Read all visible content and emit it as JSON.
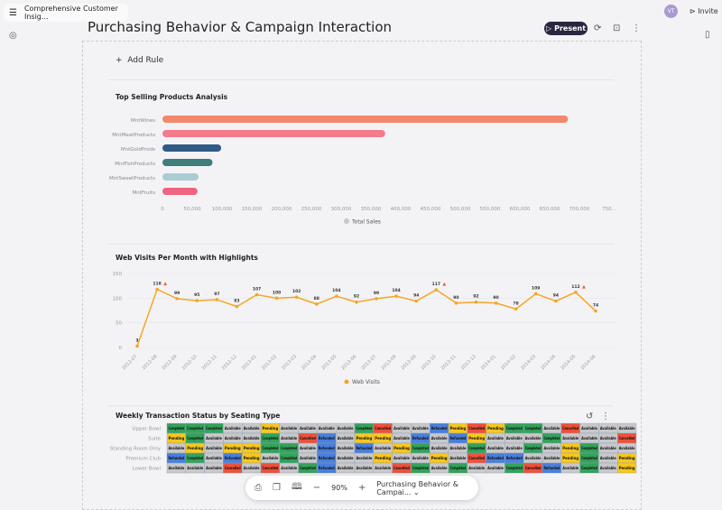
{
  "header": {
    "doc_title": "Comprehensive Customer Insig...",
    "page_title": "Purchasing Behavior & Campaign Interaction",
    "present_label": "Present",
    "avatar_initials": "VT",
    "invite_label": "Invite"
  },
  "canvas": {
    "add_rule_label": "Add Rule"
  },
  "chart_data": [
    {
      "type": "bar",
      "orientation": "horizontal",
      "title": "Top Selling Products Analysis",
      "categories": [
        "MntWines",
        "MntMeatProducts",
        "MntGoldProds",
        "MntFishProducts",
        "MntSweetProducts",
        "MntFruits"
      ],
      "values": [
        680816,
        373968,
        98609,
        84057,
        60621,
        58917
      ],
      "colors": [
        "#f4876b",
        "#f47a8c",
        "#2f5b86",
        "#3f7e79",
        "#a9cdd3",
        "#ef6480"
      ],
      "xlim": [
        0,
        750000
      ],
      "xticks": [
        "0",
        "50,000",
        "100,000",
        "150,000",
        "200,000",
        "250,000",
        "300,000",
        "350,000",
        "400,000",
        "450,000",
        "500,000",
        "550,000",
        "600,000",
        "650,000",
        "700,000",
        "750..."
      ],
      "legend": [
        {
          "name": "Total Sales",
          "color": "#c8c8cc"
        }
      ],
      "legend_position": "bottom",
      "grid": false
    },
    {
      "type": "line",
      "title": "Web Visits Per Month with Highlights",
      "x": [
        "2012-07",
        "2012-08",
        "2012-09",
        "2012-10",
        "2012-11",
        "2012-12",
        "2013-01",
        "2013-02",
        "2013-03",
        "2013-04",
        "2013-05",
        "2013-06",
        "2013-07",
        "2013-08",
        "2013-09",
        "2013-10",
        "2013-11",
        "2013-12",
        "2014-01",
        "2014-02",
        "2014-03",
        "2014-04",
        "2014-05",
        "2014-06"
      ],
      "series": [
        {
          "name": "Web Visits",
          "color": "#f5a623",
          "values": [
            3,
            118,
            99,
            95,
            97,
            83,
            107,
            100,
            102,
            88,
            104,
            92,
            99,
            104,
            94,
            117,
            90,
            92,
            90,
            78,
            109,
            94,
            112,
            74
          ]
        }
      ],
      "highlights": [
        "2012-08",
        "2013-10",
        "2014-05"
      ],
      "ylim": [
        0,
        150
      ],
      "yticks": [
        0,
        50,
        100,
        150
      ],
      "legend_position": "bottom",
      "grid": true
    },
    {
      "type": "heatmap",
      "title": "Weekly Transaction Status by Seating Type",
      "rows": [
        "Upper Bowl",
        "Suite",
        "Standing Room Only",
        "Premium Club",
        "Lower Bowl"
      ],
      "status_colors": {
        "Completed": "#34a35a",
        "Pending": "#f7c81e",
        "Available": "#c9c9cc",
        "Refunded": "#4a7fdc",
        "Cancelled": "#f0503a"
      },
      "cells": [
        [
          "Completed",
          "Completed",
          "Completed",
          "Available",
          "Available",
          "Pending",
          "Available",
          "Available",
          "Available",
          "Available",
          "Completed",
          "Cancelled",
          "Available",
          "Available",
          "Refunded",
          "Pending",
          "Cancelled",
          "Pending",
          "Completed",
          "Completed",
          "Available",
          "Cancelled",
          "Available",
          "Available",
          "Available"
        ],
        [
          "Pending",
          "Completed",
          "Available",
          "Available",
          "Available",
          "Completed",
          "Available",
          "Cancelled",
          "Refunded",
          "Available",
          "Pending",
          "Pending",
          "Available",
          "Refunded",
          "Available",
          "Refunded",
          "Pending",
          "Available",
          "Available",
          "Available",
          "Completed",
          "Available",
          "Available",
          "Available",
          "Cancelled"
        ],
        [
          "Available",
          "Pending",
          "Available",
          "Pending",
          "Pending",
          "Completed",
          "Completed",
          "Available",
          "Refunded",
          "Available",
          "Refunded",
          "Available",
          "Pending",
          "Completed",
          "Available",
          "Available",
          "Completed",
          "Available",
          "Available",
          "Completed",
          "Available",
          "Pending",
          "Completed",
          "Available",
          "Available"
        ],
        [
          "Refunded",
          "Completed",
          "Available",
          "Refunded",
          "Pending",
          "Available",
          "Completed",
          "Available",
          "Refunded",
          "Available",
          "Available",
          "Pending",
          "Available",
          "Available",
          "Pending",
          "Available",
          "Cancelled",
          "Refunded",
          "Refunded",
          "Available",
          "Available",
          "Pending",
          "Completed",
          "Available",
          "Pending"
        ],
        [
          "Available",
          "Available",
          "Available",
          "Cancelled",
          "Available",
          "Cancelled",
          "Available",
          "Completed",
          "Refunded",
          "Available",
          "Available",
          "Available",
          "Cancelled",
          "Completed",
          "Available",
          "Completed",
          "Available",
          "Available",
          "Completed",
          "Cancelled",
          "Refunded",
          "Available",
          "Completed",
          "Available",
          "Pending"
        ]
      ]
    }
  ],
  "toolbar": {
    "zoom": "90%",
    "page_select": "Purchasing Behavior & Campai..."
  }
}
